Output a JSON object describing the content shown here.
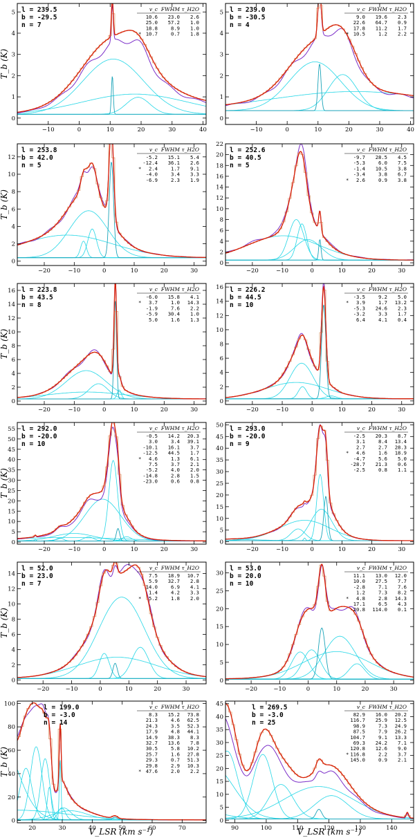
{
  "colors": {
    "obs": "#7a2cc8",
    "fit": "#d81e05",
    "comp": "#22d6e6",
    "narrow": "#1aa3b8",
    "hist": "#e0a37a"
  },
  "labels": {
    "y_label": "T_b (K)",
    "x_label": "V_LSR (km s⁻¹)",
    "table_header": {
      "vc": "v_c",
      "fwhm": "FWHM",
      "tau": "τ_H2O"
    }
  },
  "chart_data": [
    {
      "type": "line",
      "l": "239.5",
      "b": "-29.5",
      "n": "7",
      "xlim": [
        -20,
        41
      ],
      "ylim": [
        -0.3,
        5.4
      ],
      "xticks": [
        -10,
        0,
        10,
        20,
        30,
        40
      ],
      "yticks": [
        0,
        1,
        2,
        3,
        4,
        5
      ],
      "table": [
        [
          "",
          "10.6",
          "23.0",
          "2.6"
        ],
        [
          "",
          "25.0",
          "57.2",
          "1.0"
        ],
        [
          "",
          "18.8",
          "8.9",
          "1.0"
        ],
        [
          "*",
          "10.7",
          "0.7",
          "1.8"
        ]
      ]
    },
    {
      "type": "line",
      "l": "239.0",
      "b": "-30.5",
      "n": "4",
      "xlim": [
        -20,
        41
      ],
      "ylim": [
        -0.3,
        5.4
      ],
      "xticks": [
        -10,
        0,
        10,
        20,
        30,
        40
      ],
      "yticks": [
        0,
        1,
        2,
        3,
        4,
        5
      ],
      "table": [
        [
          "",
          "9.0",
          "19.6",
          "2.3"
        ],
        [
          "",
          "22.6",
          "64.7",
          "0.9"
        ],
        [
          "",
          "17.8",
          "11.2",
          "1.7"
        ],
        [
          "*",
          "10.5",
          "1.2",
          "2.2"
        ]
      ]
    },
    {
      "type": "line",
      "l": "253.8",
      "b": "42.0",
      "n": "5",
      "xlim": [
        -29,
        34
      ],
      "ylim": [
        -0.5,
        13.5
      ],
      "xticks": [
        -20,
        -10,
        0,
        10,
        20,
        30
      ],
      "yticks": [
        0,
        2,
        4,
        6,
        8,
        10,
        12
      ],
      "table": [
        [
          "",
          "-5.2",
          "15.1",
          "5.4"
        ],
        [
          "",
          "-12.4",
          "36.1",
          "2.6"
        ],
        [
          "*",
          "2.4",
          "1.7",
          "9.1"
        ],
        [
          "",
          "-4.0",
          "3.4",
          "3.3"
        ],
        [
          "",
          "-6.9",
          "2.3",
          "1.9"
        ]
      ]
    },
    {
      "type": "line",
      "l": "252.6",
      "b": "40.5",
      "n": "5",
      "xlim": [
        -29,
        34
      ],
      "ylim": [
        -0.5,
        22
      ],
      "xticks": [
        -20,
        -10,
        0,
        10,
        20,
        30
      ],
      "yticks": [
        0,
        2,
        4,
        6,
        8,
        10,
        12,
        14,
        16,
        18,
        20,
        22
      ],
      "table": [
        [
          "",
          "-9.7",
          "28.5",
          "4.5"
        ],
        [
          "",
          "-5.3",
          "6.0",
          "7.5"
        ],
        [
          "",
          "-1.4",
          "10.5",
          "3.8"
        ],
        [
          "",
          "-3.4",
          "3.8",
          "6.7"
        ],
        [
          "*",
          "2.6",
          "0.9",
          "3.8"
        ]
      ]
    },
    {
      "type": "line",
      "l": "223.8",
      "b": "43.5",
      "n": "8",
      "xlim": [
        -29,
        34
      ],
      "ylim": [
        -0.5,
        17
      ],
      "xticks": [
        -20,
        -10,
        0,
        10,
        20,
        30
      ],
      "yticks": [
        0,
        2,
        4,
        6,
        8,
        10,
        12,
        14,
        16
      ],
      "table": [
        [
          "",
          "-6.0",
          "15.8",
          "4.1"
        ],
        [
          "*",
          "3.7",
          "1.0",
          "14.3"
        ],
        [
          "",
          "-1.9",
          "7.6",
          "2.2"
        ],
        [
          "",
          "-5.9",
          "30.4",
          "1.0"
        ],
        [
          "",
          "5.0",
          "1.6",
          "1.3"
        ]
      ]
    },
    {
      "type": "line",
      "l": "226.2",
      "b": "44.5",
      "n": "10",
      "xlim": [
        -29,
        34
      ],
      "ylim": [
        -0.5,
        16.5
      ],
      "xticks": [
        -20,
        -10,
        0,
        10,
        20,
        30
      ],
      "yticks": [
        0,
        2,
        4,
        6,
        8,
        10,
        12,
        14,
        16
      ],
      "table": [
        [
          "",
          "-3.5",
          "9.2",
          "5.0"
        ],
        [
          "*",
          "3.9",
          "1.7",
          "13.2"
        ],
        [
          "",
          "-5.3",
          "24.6",
          "2.3"
        ],
        [
          "",
          "-3.2",
          "3.3",
          "1.7"
        ],
        [
          "",
          "6.4",
          "4.1",
          "0.4"
        ]
      ]
    },
    {
      "type": "line",
      "l": "292.0",
      "b": "-20.0",
      "n": "10",
      "xlim": [
        -29,
        34
      ],
      "ylim": [
        -1,
        58
      ],
      "xticks": [
        -20,
        -10,
        0,
        10,
        20,
        30
      ],
      "yticks": [
        0,
        5,
        10,
        15,
        20,
        25,
        30,
        35,
        40,
        45,
        50,
        55
      ],
      "table": [
        [
          "",
          "-0.5",
          "14.2",
          "20.3"
        ],
        [
          "",
          "3.0",
          "3.4",
          "39.1"
        ],
        [
          "",
          "-10.1",
          "16.1",
          "3.7"
        ],
        [
          "",
          "-12.5",
          "44.5",
          "1.7"
        ],
        [
          "*",
          "4.6",
          "1.3",
          "6.1"
        ],
        [
          "",
          "7.5",
          "3.7",
          "2.1"
        ],
        [
          "",
          "-5.2",
          "4.0",
          "2.0"
        ],
        [
          "",
          "-14.8",
          "2.8",
          "1.5"
        ],
        [
          "",
          "-23.0",
          "0.6",
          "0.8"
        ]
      ]
    },
    {
      "type": "line",
      "l": "293.0",
      "b": "-20.0",
      "n": "9",
      "xlim": [
        -29,
        34
      ],
      "ylim": [
        -1,
        51
      ],
      "xticks": [
        -20,
        -10,
        0,
        10,
        20,
        30
      ],
      "yticks": [
        0,
        5,
        10,
        15,
        20,
        25,
        30,
        35,
        40,
        45,
        50
      ],
      "table": [
        [
          "",
          "-2.5",
          "20.3",
          "8.7"
        ],
        [
          "",
          "3.1",
          "8.4",
          "13.4"
        ],
        [
          "",
          "2.7",
          "2.7",
          "28.3"
        ],
        [
          "*",
          "4.6",
          "1.6",
          "18.9"
        ],
        [
          "",
          "-4.7",
          "5.6",
          "5.0"
        ],
        [
          "",
          "-28.7",
          "21.3",
          "0.6"
        ],
        [
          "",
          "-2.5",
          "0.8",
          "1.1"
        ]
      ]
    },
    {
      "type": "line",
      "l": "52.0",
      "b": "23.0",
      "n": "7",
      "xlim": [
        -29,
        37
      ],
      "ylim": [
        -0.5,
        15.5
      ],
      "xticks": [
        -20,
        -10,
        0,
        10,
        20,
        30
      ],
      "yticks": [
        0,
        2,
        4,
        6,
        8,
        10,
        12,
        14
      ],
      "table": [
        [
          "",
          "7.5",
          "18.9",
          "10.7"
        ],
        [
          "",
          "5.9",
          "32.7",
          "2.8"
        ],
        [
          "",
          "14.0",
          "6.9",
          "4.1"
        ],
        [
          "",
          "1.4",
          "4.2",
          "3.3"
        ],
        [
          "*",
          "5.2",
          "1.8",
          "2.0"
        ]
      ]
    },
    {
      "type": "line",
      "l": "53.0",
      "b": "20.0",
      "n": "10",
      "xlim": [
        -29,
        37
      ],
      "ylim": [
        -1,
        33
      ],
      "xticks": [
        -20,
        -10,
        0,
        10,
        20,
        30
      ],
      "yticks": [
        0,
        5,
        10,
        15,
        20,
        25,
        30
      ],
      "table": [
        [
          "",
          "11.1",
          "13.0",
          "12.0"
        ],
        [
          "",
          "10.0",
          "27.5",
          "7.7"
        ],
        [
          "",
          "-2.8",
          "7.1",
          "7.6"
        ],
        [
          "",
          "1.2",
          "7.3",
          "8.2"
        ],
        [
          "*",
          "4.8",
          "2.8",
          "14.3"
        ],
        [
          "",
          "17.1",
          "6.5",
          "4.3"
        ],
        [
          "",
          "-20.8",
          "114.0",
          "0.1"
        ]
      ]
    },
    {
      "type": "line",
      "l": "199.0",
      "b": "-3.0",
      "n": "14",
      "xlim": [
        15,
        78
      ],
      "ylim": [
        -2,
        102
      ],
      "xticks": [
        20,
        30,
        40,
        50,
        60,
        70
      ],
      "yticks": [
        0,
        20,
        40,
        60,
        80,
        100
      ],
      "table": [
        [
          "",
          "8.3",
          "15.2",
          "73.8"
        ],
        [
          "",
          "21.3",
          "4.6",
          "62.5"
        ],
        [
          "",
          "24.3",
          "3.5",
          "52.3"
        ],
        [
          "",
          "17.9",
          "4.8",
          "44.1"
        ],
        [
          "",
          "14.9",
          "38.3",
          "8.3"
        ],
        [
          "",
          "32.7",
          "13.6",
          "7.8"
        ],
        [
          "",
          "30.5",
          "5.8",
          "10.2"
        ],
        [
          "",
          "25.7",
          "1.6",
          "27.8"
        ],
        [
          "",
          "29.3",
          "0.7",
          "51.3"
        ],
        [
          "",
          "29.8",
          "2.9",
          "10.3"
        ],
        [
          "*",
          "47.6",
          "2.0",
          "2.2"
        ]
      ]
    },
    {
      "type": "line",
      "l": "269.5",
      "b": "-3.0",
      "n": "25",
      "xlim": [
        87,
        147
      ],
      "ylim": [
        -1,
        46
      ],
      "xticks": [
        90,
        100,
        110,
        120,
        130,
        140
      ],
      "yticks": [
        0,
        5,
        10,
        15,
        20,
        25,
        30,
        35,
        40,
        45
      ],
      "table": [
        [
          "",
          "82.9",
          "16.0",
          "20.2"
        ],
        [
          "",
          "116.7",
          "25.9",
          "12.5"
        ],
        [
          "",
          "98.9",
          "7.3",
          "24.9"
        ],
        [
          "",
          "87.5",
          "7.9",
          "26.2"
        ],
        [
          "",
          "104.7",
          "9.1",
          "13.3"
        ],
        [
          "",
          "69.3",
          "24.2",
          "7.1"
        ],
        [
          "",
          "120.8",
          "12.6",
          "9.0"
        ],
        [
          "*",
          "116.8",
          "2.2",
          "3.7"
        ],
        [
          "",
          "145.0",
          "0.9",
          "2.1"
        ]
      ]
    }
  ]
}
